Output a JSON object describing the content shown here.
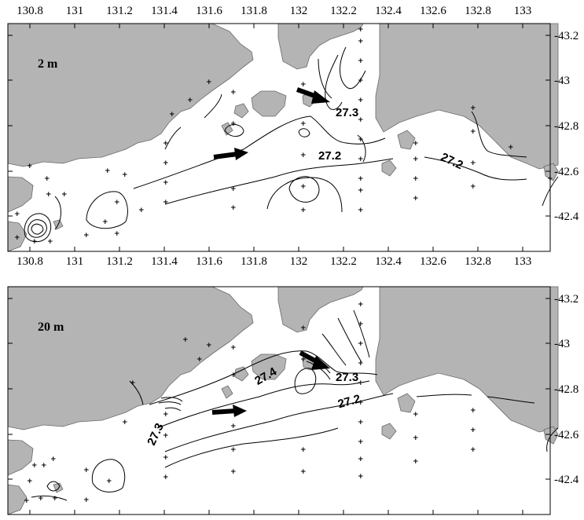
{
  "x_ticks": [
    "130.8",
    "131",
    "131.2",
    "131.4",
    "131.6",
    "131.8",
    "132",
    "132.2",
    "132.4",
    "132.6",
    "132.8",
    "133"
  ],
  "y_ticks": [
    "43.2",
    "43",
    "42.8",
    "42.6",
    "42.4"
  ],
  "panels": [
    {
      "depth_label": "2 m",
      "contour_labels": [
        {
          "text": "27.3"
        },
        {
          "text": "27.2"
        },
        {
          "text": "27.2"
        }
      ]
    },
    {
      "depth_label": "20 m",
      "contour_labels": [
        {
          "text": "27.4"
        },
        {
          "text": "27.3"
        },
        {
          "text": "27.2"
        },
        {
          "text": "27.3"
        }
      ]
    }
  ],
  "colors": {
    "land": "#b4b4b4",
    "water": "#ffffff",
    "lines": "#000000"
  }
}
